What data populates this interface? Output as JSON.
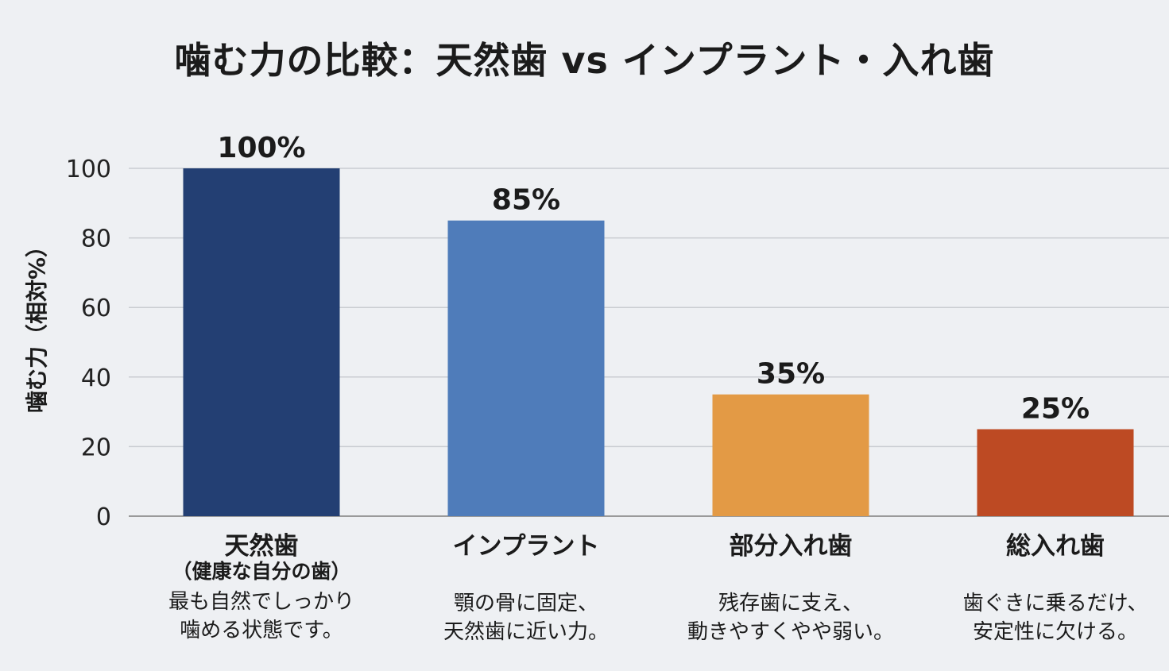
{
  "chart_data": {
    "type": "bar",
    "title": "噛む力の比較：天然歯 vs インプラント・入れ歯",
    "ylabel": "噛む力（相対%）",
    "xlabel": "",
    "ylim": [
      0,
      100
    ],
    "yticks": [
      0,
      20,
      40,
      60,
      80,
      100
    ],
    "grid": true,
    "categories": [
      "天然歯",
      "インプラント",
      "部分入れ歯",
      "総入れ歯"
    ],
    "subtitles": [
      "（健康な自分の歯）",
      "",
      "",
      ""
    ],
    "descriptions": [
      [
        "最も自然でしっかり",
        "噛める状態です。"
      ],
      [
        "顎の骨に固定、",
        "天然歯に近い力。"
      ],
      [
        "残存歯に支え、",
        "動きやすくやや弱い。"
      ],
      [
        "歯ぐきに乗るだけ、",
        "安定性に欠ける。"
      ]
    ],
    "values": [
      100,
      85,
      35,
      25
    ],
    "value_labels": [
      "100%",
      "85%",
      "35%",
      "25%"
    ],
    "colors": [
      "#233f73",
      "#4f7cba",
      "#e39a45",
      "#bd4a23"
    ]
  }
}
